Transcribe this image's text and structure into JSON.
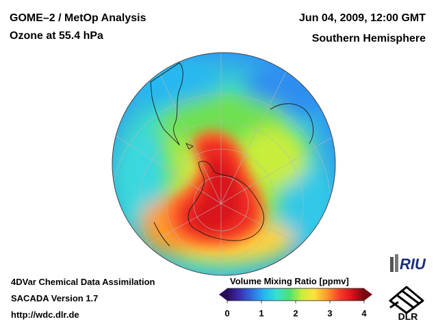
{
  "header": {
    "title_line1": "GOME–2 / MetOp Analysis",
    "title_line2": "Ozone at 55.4 hPa",
    "datetime": "Jun 04, 2009, 12:00 GMT",
    "region": "Southern Hemisphere"
  },
  "footer": {
    "line1": "4DVar Chemical Data Assimilation",
    "line2": "SACADA Version 1.7",
    "line3": "http://wdc.dlr.de"
  },
  "colorbar": {
    "title": "Volume Mixing Ratio [ppmv]",
    "ticks": [
      "0",
      "1",
      "2",
      "3",
      "4"
    ],
    "min": 0,
    "max": 4,
    "colors": [
      "#2a0a5e",
      "#3a2fb0",
      "#2f6fe0",
      "#25b8f0",
      "#38e0d0",
      "#4ee070",
      "#c8ee3a",
      "#ffe040",
      "#ff9a2a",
      "#f5402a",
      "#d8141c",
      "#7a0610"
    ]
  },
  "logos": {
    "riu": "RIU",
    "dlr": "DLR"
  },
  "chart_data": {
    "type": "heatmap",
    "title": "GOME–2 / MetOp Analysis — Ozone at 55.4 hPa",
    "projection": "orthographic, Southern Hemisphere (South Pole at center)",
    "variable": "Ozone volume mixing ratio",
    "units": "ppmv",
    "range": [
      0,
      4
    ],
    "features": [
      {
        "region": "Antarctic polar vortex interior",
        "approx_value": 3.8
      },
      {
        "region": "Vortex edge collar",
        "approx_value": 2.4
      },
      {
        "region": "Southern mid-latitudes",
        "approx_value": 1.6
      },
      {
        "region": "Subtropics / equatorial rim",
        "approx_value": 0.9
      }
    ]
  }
}
